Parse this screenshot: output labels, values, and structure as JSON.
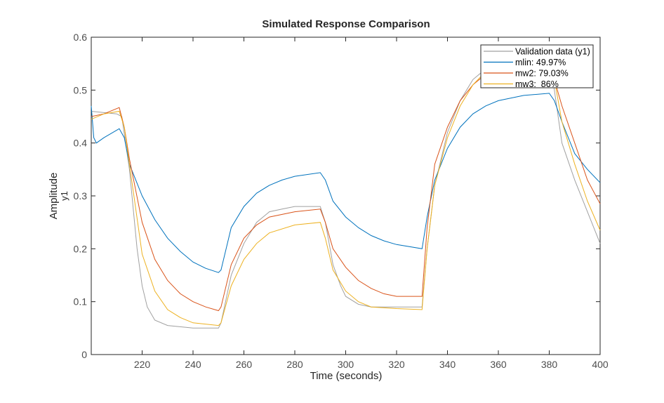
{
  "chart_data": {
    "type": "line",
    "title": "Simulated Response Comparison",
    "xlabel": "Time (seconds)",
    "ylabel": "Amplitude",
    "ylabel2": "y1",
    "xlim": [
      200,
      400
    ],
    "ylim": [
      0,
      0.6
    ],
    "xticks": [
      220,
      240,
      260,
      280,
      300,
      320,
      340,
      360,
      380,
      400
    ],
    "yticks": [
      0,
      0.1,
      0.2,
      0.3,
      0.4,
      0.5,
      0.6
    ],
    "legend_position": "top-right",
    "series": [
      {
        "name": "Validation data (y1)",
        "color": "#a0a0a0",
        "x": [
          200,
          210,
          212,
          215,
          218,
          220,
          222,
          225,
          230,
          240,
          250,
          251,
          255,
          260,
          265,
          270,
          275,
          280,
          290,
          292,
          295,
          298,
          300,
          305,
          310,
          320,
          330,
          332,
          335,
          340,
          345,
          350,
          355,
          360,
          370,
          380,
          382,
          385,
          390,
          395,
          400
        ],
        "y": [
          0.46,
          0.455,
          0.45,
          0.35,
          0.2,
          0.13,
          0.09,
          0.065,
          0.055,
          0.05,
          0.05,
          0.06,
          0.15,
          0.21,
          0.25,
          0.27,
          0.275,
          0.28,
          0.28,
          0.25,
          0.17,
          0.13,
          0.11,
          0.095,
          0.09,
          0.09,
          0.09,
          0.2,
          0.32,
          0.42,
          0.48,
          0.52,
          0.54,
          0.55,
          0.56,
          0.55,
          0.5,
          0.4,
          0.33,
          0.27,
          0.21
        ]
      },
      {
        "name": "mlin: 49.97%",
        "color": "#0072bd",
        "x": [
          200,
          201,
          202,
          205,
          211,
          213,
          215,
          220,
          225,
          230,
          235,
          240,
          245,
          250,
          251,
          255,
          260,
          265,
          270,
          275,
          280,
          290,
          292,
          295,
          300,
          305,
          310,
          315,
          320,
          330,
          332,
          335,
          340,
          345,
          350,
          355,
          360,
          370,
          380,
          382,
          385,
          390,
          395,
          400
        ],
        "y": [
          0.47,
          0.41,
          0.4,
          0.41,
          0.427,
          0.41,
          0.36,
          0.3,
          0.255,
          0.22,
          0.195,
          0.175,
          0.163,
          0.155,
          0.16,
          0.24,
          0.28,
          0.305,
          0.32,
          0.33,
          0.337,
          0.344,
          0.33,
          0.29,
          0.26,
          0.24,
          0.225,
          0.215,
          0.208,
          0.2,
          0.26,
          0.33,
          0.39,
          0.43,
          0.455,
          0.47,
          0.48,
          0.49,
          0.494,
          0.48,
          0.44,
          0.38,
          0.35,
          0.325
        ]
      },
      {
        "name": "mw2: 79.03%",
        "color": "#d95319",
        "x": [
          200,
          205,
          211,
          213,
          215,
          220,
          225,
          230,
          235,
          240,
          245,
          250,
          251,
          255,
          260,
          265,
          270,
          280,
          290,
          292,
          295,
          300,
          305,
          310,
          315,
          320,
          330,
          332,
          335,
          340,
          345,
          350,
          355,
          360,
          370,
          380,
          382,
          385,
          390,
          395,
          400
        ],
        "y": [
          0.45,
          0.455,
          0.467,
          0.43,
          0.37,
          0.25,
          0.18,
          0.14,
          0.115,
          0.1,
          0.09,
          0.083,
          0.09,
          0.17,
          0.22,
          0.245,
          0.26,
          0.27,
          0.275,
          0.25,
          0.2,
          0.165,
          0.14,
          0.125,
          0.115,
          0.11,
          0.11,
          0.24,
          0.36,
          0.43,
          0.48,
          0.51,
          0.53,
          0.545,
          0.555,
          0.56,
          0.52,
          0.47,
          0.4,
          0.33,
          0.285
        ]
      },
      {
        "name": "mw3:  86%",
        "color": "#edb120",
        "x": [
          200,
          205,
          211,
          213,
          215,
          220,
          225,
          230,
          235,
          240,
          250,
          251,
          255,
          260,
          265,
          270,
          280,
          290,
          292,
          295,
          300,
          305,
          310,
          320,
          330,
          332,
          335,
          340,
          345,
          350,
          355,
          360,
          370,
          380,
          382,
          385,
          390,
          395,
          400
        ],
        "y": [
          0.445,
          0.455,
          0.46,
          0.43,
          0.36,
          0.19,
          0.12,
          0.085,
          0.07,
          0.06,
          0.055,
          0.06,
          0.13,
          0.18,
          0.21,
          0.23,
          0.245,
          0.25,
          0.22,
          0.16,
          0.12,
          0.1,
          0.09,
          0.087,
          0.085,
          0.2,
          0.32,
          0.41,
          0.47,
          0.51,
          0.535,
          0.55,
          0.56,
          0.56,
          0.52,
          0.44,
          0.36,
          0.29,
          0.235
        ]
      }
    ]
  }
}
